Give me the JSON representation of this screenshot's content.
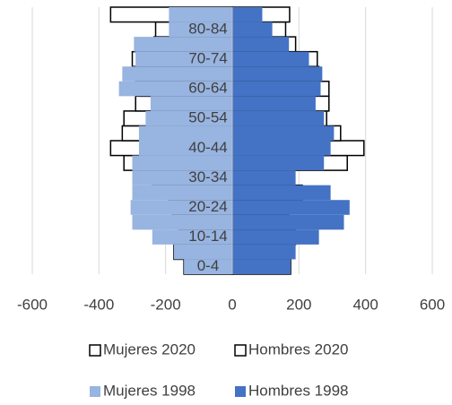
{
  "chart_data": {
    "type": "bar",
    "orientation": "horizontal",
    "categories": [
      "0-4",
      null,
      "10-14",
      null,
      "20-24",
      null,
      "30-34",
      null,
      "40-44",
      null,
      "50-54",
      null,
      "60-64",
      null,
      "70-74",
      null,
      "80-84",
      null
    ],
    "series": [
      {
        "name": "Mujeres 2020",
        "color": "#ffffff",
        "values": [
          -145,
          -175,
          -160,
          -160,
          -180,
          -190,
          -240,
          -325,
          -365,
          -330,
          -325,
          -290,
          -275,
          -290,
          -300,
          -235,
          -230,
          -365
        ]
      },
      {
        "name": "Hombres 2020",
        "color": "#ffffff",
        "values": [
          175,
          170,
          190,
          170,
          165,
          210,
          155,
          345,
          395,
          325,
          283,
          290,
          290,
          260,
          255,
          190,
          160,
          172
        ]
      },
      {
        "name": "Mujeres 1998",
        "color": "#98b4e0",
        "values": [
          -145,
          -175,
          -240,
          -300,
          -305,
          -300,
          -300,
          -300,
          -280,
          -280,
          -260,
          -245,
          -340,
          -330,
          -290,
          -295,
          -190,
          -190
        ]
      },
      {
        "name": "Hombres 1998",
        "color": "#4472c4",
        "values": [
          175,
          190,
          260,
          335,
          352,
          295,
          190,
          275,
          295,
          305,
          275,
          250,
          265,
          270,
          230,
          170,
          120,
          90
        ]
      }
    ],
    "xlim": [
      -600,
      600
    ],
    "xticks": [
      -600,
      -400,
      -200,
      0,
      200,
      400,
      600
    ],
    "grid": true
  }
}
